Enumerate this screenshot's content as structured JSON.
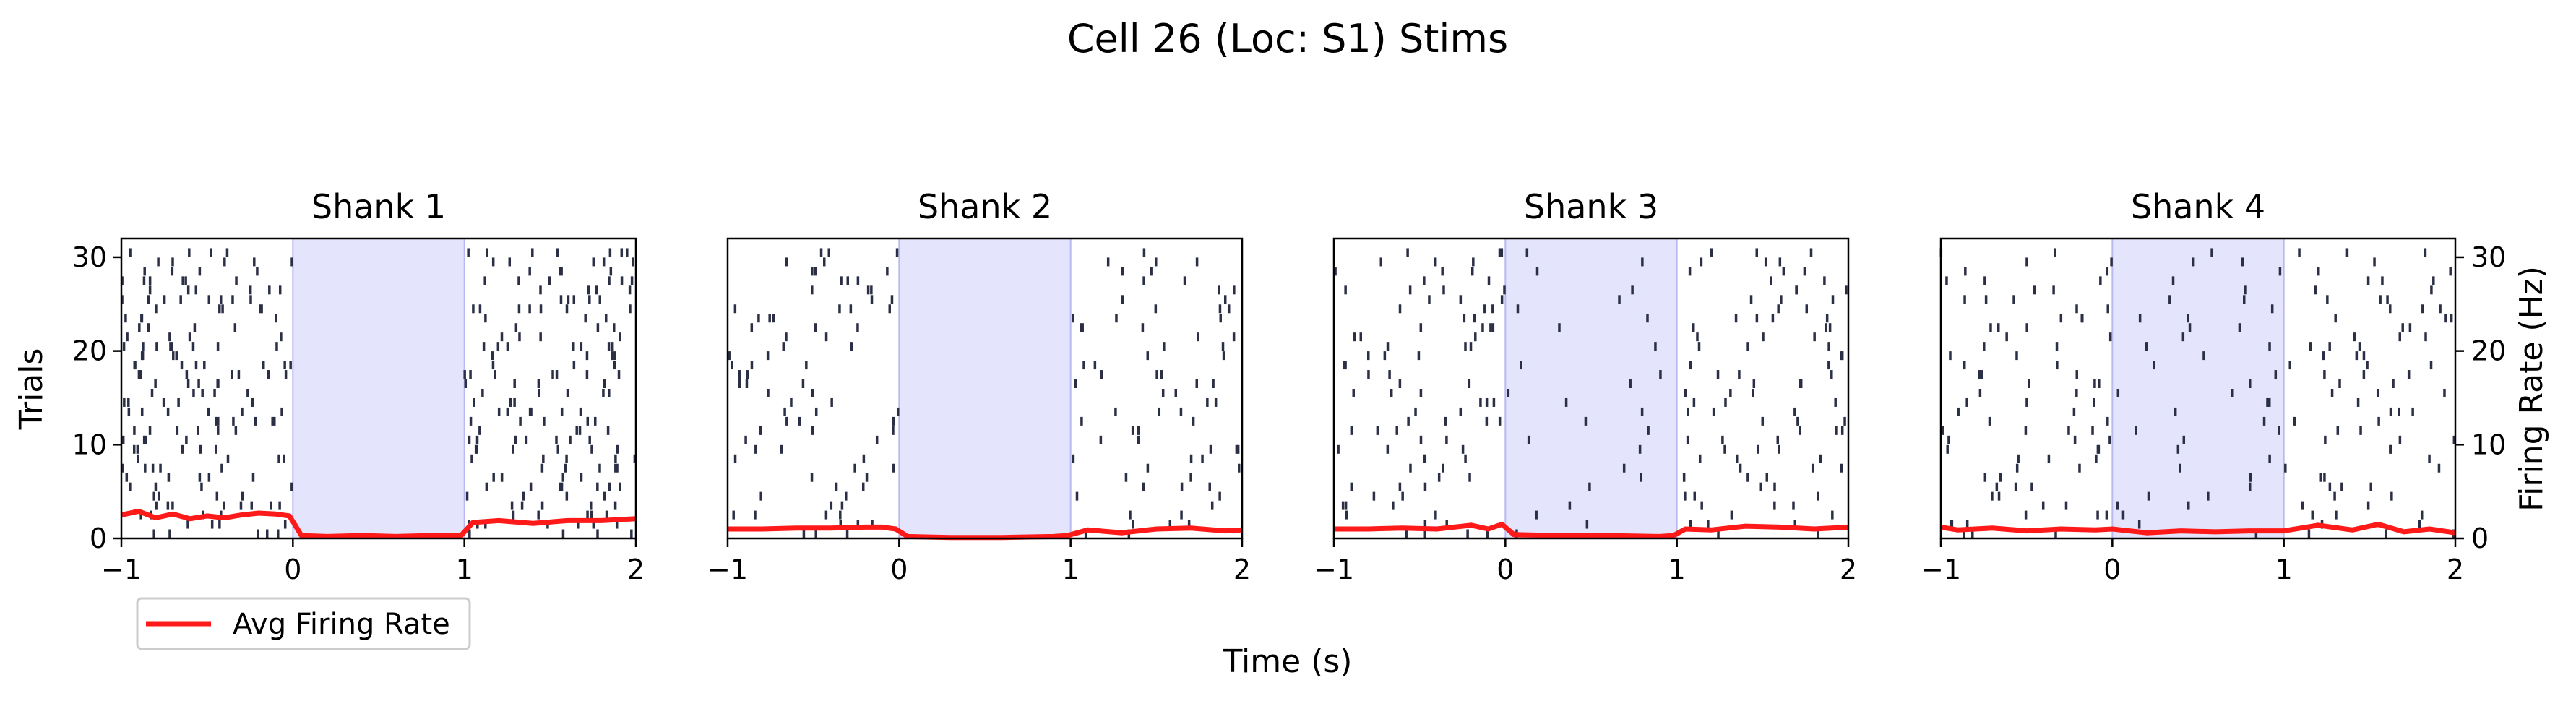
{
  "figure": {
    "title": "Cell 26 (Loc: S1) Stims",
    "xlabel": "Time (s)"
  },
  "chart_data": {
    "type": "raster",
    "xlim": [
      -1,
      2
    ],
    "xticks": [
      -1,
      0,
      1,
      2
    ],
    "trial_lim": [
      0,
      32
    ],
    "trial_ticks": [
      0,
      10,
      20,
      30
    ],
    "trial_label": "Trials",
    "rate_lim": [
      0,
      32
    ],
    "rate_ticks": [
      0,
      10,
      20,
      30
    ],
    "rate_label": "Firing Rate (Hz)",
    "stim_window": [
      0,
      1
    ],
    "n_trials": 31,
    "colors": {
      "spikes": "#2b2f45",
      "rate": "#ff1a1a",
      "stim": "#e4e4fc",
      "stim_edge": "#b9b9f2"
    },
    "legend": {
      "label": "Avg Firing Rate",
      "position": "bottom-left"
    },
    "panels": [
      {
        "title": "Shank 1",
        "pre_density": 5.5,
        "stim_density": 0.35,
        "post_density": 5.0,
        "rate_x": [
          -1,
          -0.9,
          -0.8,
          -0.7,
          -0.6,
          -0.5,
          -0.4,
          -0.3,
          -0.2,
          -0.1,
          -0.02,
          0.05,
          0.2,
          0.4,
          0.6,
          0.8,
          0.98,
          1.05,
          1.2,
          1.4,
          1.6,
          1.8,
          2.0
        ],
        "rate_y": [
          2.5,
          2.9,
          2.2,
          2.6,
          2.1,
          2.4,
          2.2,
          2.5,
          2.7,
          2.6,
          2.4,
          0.3,
          0.2,
          0.3,
          0.2,
          0.3,
          0.3,
          1.7,
          1.9,
          1.6,
          1.9,
          1.9,
          2.1
        ]
      },
      {
        "title": "Shank 2",
        "pre_density": 2.6,
        "stim_density": 0.12,
        "post_density": 2.3,
        "rate_x": [
          -1,
          -0.8,
          -0.6,
          -0.4,
          -0.2,
          -0.1,
          -0.02,
          0.05,
          0.3,
          0.6,
          0.9,
          0.98,
          1.1,
          1.3,
          1.5,
          1.7,
          1.9,
          2.0
        ],
        "rate_y": [
          1.0,
          1.0,
          1.1,
          1.1,
          1.2,
          1.2,
          1.0,
          0.2,
          0.1,
          0.1,
          0.2,
          0.3,
          0.9,
          0.6,
          1.0,
          1.1,
          0.8,
          0.9
        ]
      },
      {
        "title": "Shank 3",
        "pre_density": 2.8,
        "stim_density": 0.6,
        "post_density": 2.6,
        "rate_x": [
          -1,
          -0.8,
          -0.6,
          -0.4,
          -0.2,
          -0.1,
          -0.02,
          0.05,
          0.3,
          0.6,
          0.9,
          0.98,
          1.05,
          1.2,
          1.4,
          1.6,
          1.8,
          2.0
        ],
        "rate_y": [
          1.0,
          1.0,
          1.1,
          1.0,
          1.4,
          1.0,
          1.5,
          0.4,
          0.3,
          0.3,
          0.2,
          0.3,
          1.0,
          0.9,
          1.3,
          1.2,
          1.0,
          1.2
        ]
      },
      {
        "title": "Shank 4",
        "pre_density": 2.6,
        "stim_density": 1.3,
        "post_density": 2.4,
        "rate_x": [
          -1,
          -0.9,
          -0.7,
          -0.5,
          -0.3,
          -0.1,
          0.0,
          0.2,
          0.4,
          0.6,
          0.8,
          1.0,
          1.2,
          1.4,
          1.55,
          1.7,
          1.85,
          2.0
        ],
        "rate_y": [
          1.2,
          0.9,
          1.1,
          0.8,
          1.0,
          0.9,
          1.0,
          0.6,
          0.8,
          0.7,
          0.8,
          0.8,
          1.4,
          0.9,
          1.5,
          0.7,
          1.0,
          0.6
        ]
      }
    ]
  }
}
